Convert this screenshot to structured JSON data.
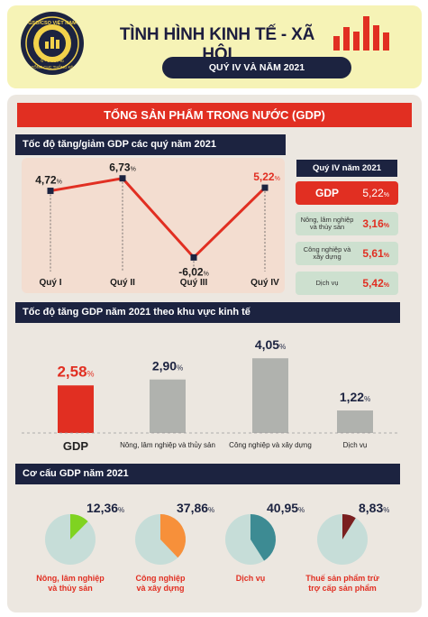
{
  "header": {
    "title": "TÌNH HÌNH KINH TẾ - XÃ HỘI",
    "subtitle": "QUÝ IV VÀ NĂM 2021",
    "logo": {
      "top_text": "GSO/CSO VIỆT NAM",
      "date_text": "6 - 5 - 1946",
      "bottom_text": "TỔNG CỤC THỐNG KÊ"
    },
    "icon": "bar-chart-icon"
  },
  "gdp_title": "TỔNG SẢN PHẨM TRONG NƯỚC (GDP)",
  "sections": {
    "quarterly": "Tốc độ tăng/giảm GDP các quý năm 2021",
    "sectors": "Tốc độ tăng GDP năm 2021 theo khu vực kinh tế",
    "structure": "Cơ cấu GDP năm 2021"
  },
  "q4_box": {
    "header": "Quý IV năm 2021",
    "rows": [
      {
        "label": "GDP",
        "value": "5,22",
        "unit": "%"
      },
      {
        "label": "Nông, lâm nghiệp và thủy sản",
        "value": "3,16",
        "unit": "%"
      },
      {
        "label": "Công nghiệp và xây dựng",
        "value": "5,61",
        "unit": "%"
      },
      {
        "label": "Dịch vụ",
        "value": "5,42",
        "unit": "%"
      }
    ]
  },
  "colors": {
    "navy": "#1c2340",
    "red": "#e12f22",
    "grey": "#b0b2ae",
    "pie_base": "#c6ddd8",
    "green": "#7fd321",
    "orange": "#f7903a",
    "teal": "#3d8b93",
    "maroon": "#7a1f1f"
  },
  "chart_data": [
    {
      "type": "line",
      "title": "Tốc độ tăng/giảm GDP các quý năm 2021",
      "categories": [
        "Quý I",
        "Quý II",
        "Quý III",
        "Quý IV"
      ],
      "values": [
        4.72,
        6.73,
        -6.02,
        5.22
      ],
      "labels": [
        "4,72",
        "6,73",
        "-6,02",
        "5,22"
      ],
      "unit": "%",
      "ylim": [
        -8,
        8
      ]
    },
    {
      "type": "bar",
      "title": "Tốc độ tăng GDP năm 2021 theo khu vực kinh tế",
      "categories": [
        "GDP",
        "Nông, lâm nghiệp và thủy sản",
        "Công nghiệp và xây dựng",
        "Dịch vụ"
      ],
      "values": [
        2.58,
        2.9,
        4.05,
        1.22
      ],
      "labels": [
        "2,58",
        "2,90",
        "4,05",
        "1,22"
      ],
      "unit": "%",
      "ylim": [
        0,
        4.5
      ]
    },
    {
      "type": "pie",
      "title": "Cơ cấu GDP năm 2021",
      "categories": [
        "Nông, lâm nghiệp và thủy sản",
        "Công nghiệp và xây dựng",
        "Dịch vụ",
        "Thuế sản phẩm trừ trợ cấp sản phẩm"
      ],
      "values": [
        12.36,
        37.86,
        40.95,
        8.83
      ],
      "labels": [
        "12,36",
        "37,86",
        "40,95",
        "8,83"
      ],
      "unit": "%"
    }
  ]
}
